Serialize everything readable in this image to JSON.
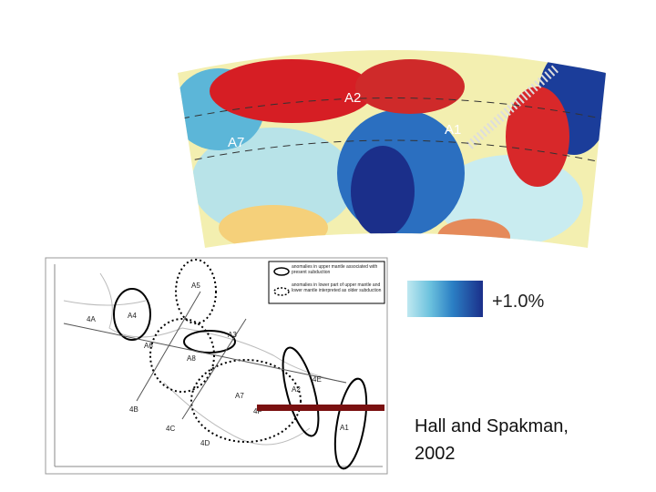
{
  "tomography": {
    "labels": [
      "A2",
      "A1",
      "A7"
    ]
  },
  "scale": {
    "label": "+1.0%"
  },
  "map": {
    "labels": [
      "A4",
      "A5",
      "A6",
      "A3",
      "A8",
      "A7",
      "A2",
      "A1",
      "4A",
      "4B",
      "4C",
      "4D",
      "4E",
      "4F"
    ],
    "legend": [
      "anomalies in upper mantle associated with present subduction",
      "anomalies in lower part of upper mantle and lower mantle interpreted as older subduction"
    ]
  },
  "caption": [
    "Hall and Spakman,",
    "2002"
  ]
}
